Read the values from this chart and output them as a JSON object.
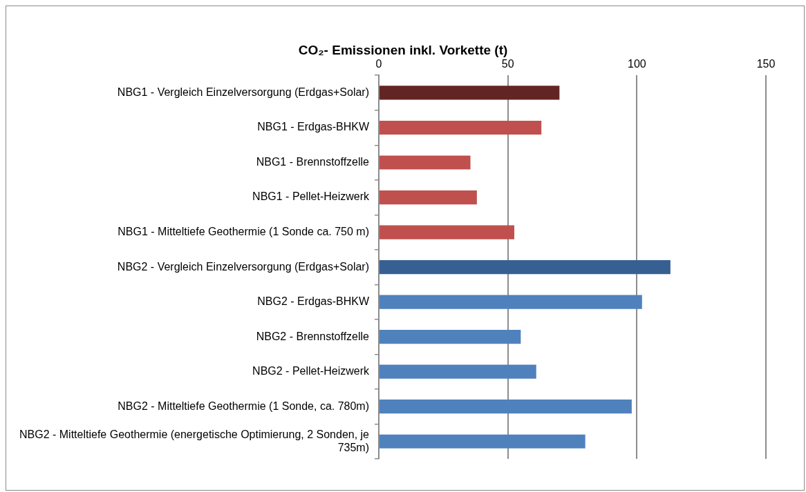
{
  "chart_data": {
    "type": "bar",
    "orientation": "horizontal",
    "title": "CO₂- Emissionen inkl. Vorkette (t)",
    "categories": [
      "NBG1 - Vergleich Einzelversorgung (Erdgas+Solar)",
      "NBG1 - Erdgas-BHKW",
      "NBG1 - Brennstoffzelle",
      "NBG1 - Pellet-Heizwerk",
      "NBG1 - Mitteltiefe Geothermie (1 Sonde ca. 750 m)",
      "NBG2 - Vergleich Einzelversorgung (Erdgas+Solar)",
      "NBG2 - Erdgas-BHKW",
      "NBG2 - Brennstoffzelle",
      "NBG2 - Pellet-Heizwerk",
      "NBG2 - Mitteltiefe Geothermie (1 Sonde, ca. 780m)",
      "NBG2 - Mitteltiefe Geothermie (energetische Optimierung, 2 Sonden, je 735m)"
    ],
    "values": [
      70,
      63,
      35.5,
      38,
      52.5,
      113,
      102,
      55,
      61,
      98,
      80
    ],
    "colors": [
      "#632523",
      "#c0504d",
      "#c0504d",
      "#c0504d",
      "#c0504d",
      "#366092",
      "#4f81bd",
      "#4f81bd",
      "#4f81bd",
      "#4f81bd",
      "#4f81bd"
    ],
    "xlim": [
      0,
      150
    ],
    "xticks": [
      0,
      50,
      100,
      150
    ],
    "grid": "x",
    "legend": false
  }
}
